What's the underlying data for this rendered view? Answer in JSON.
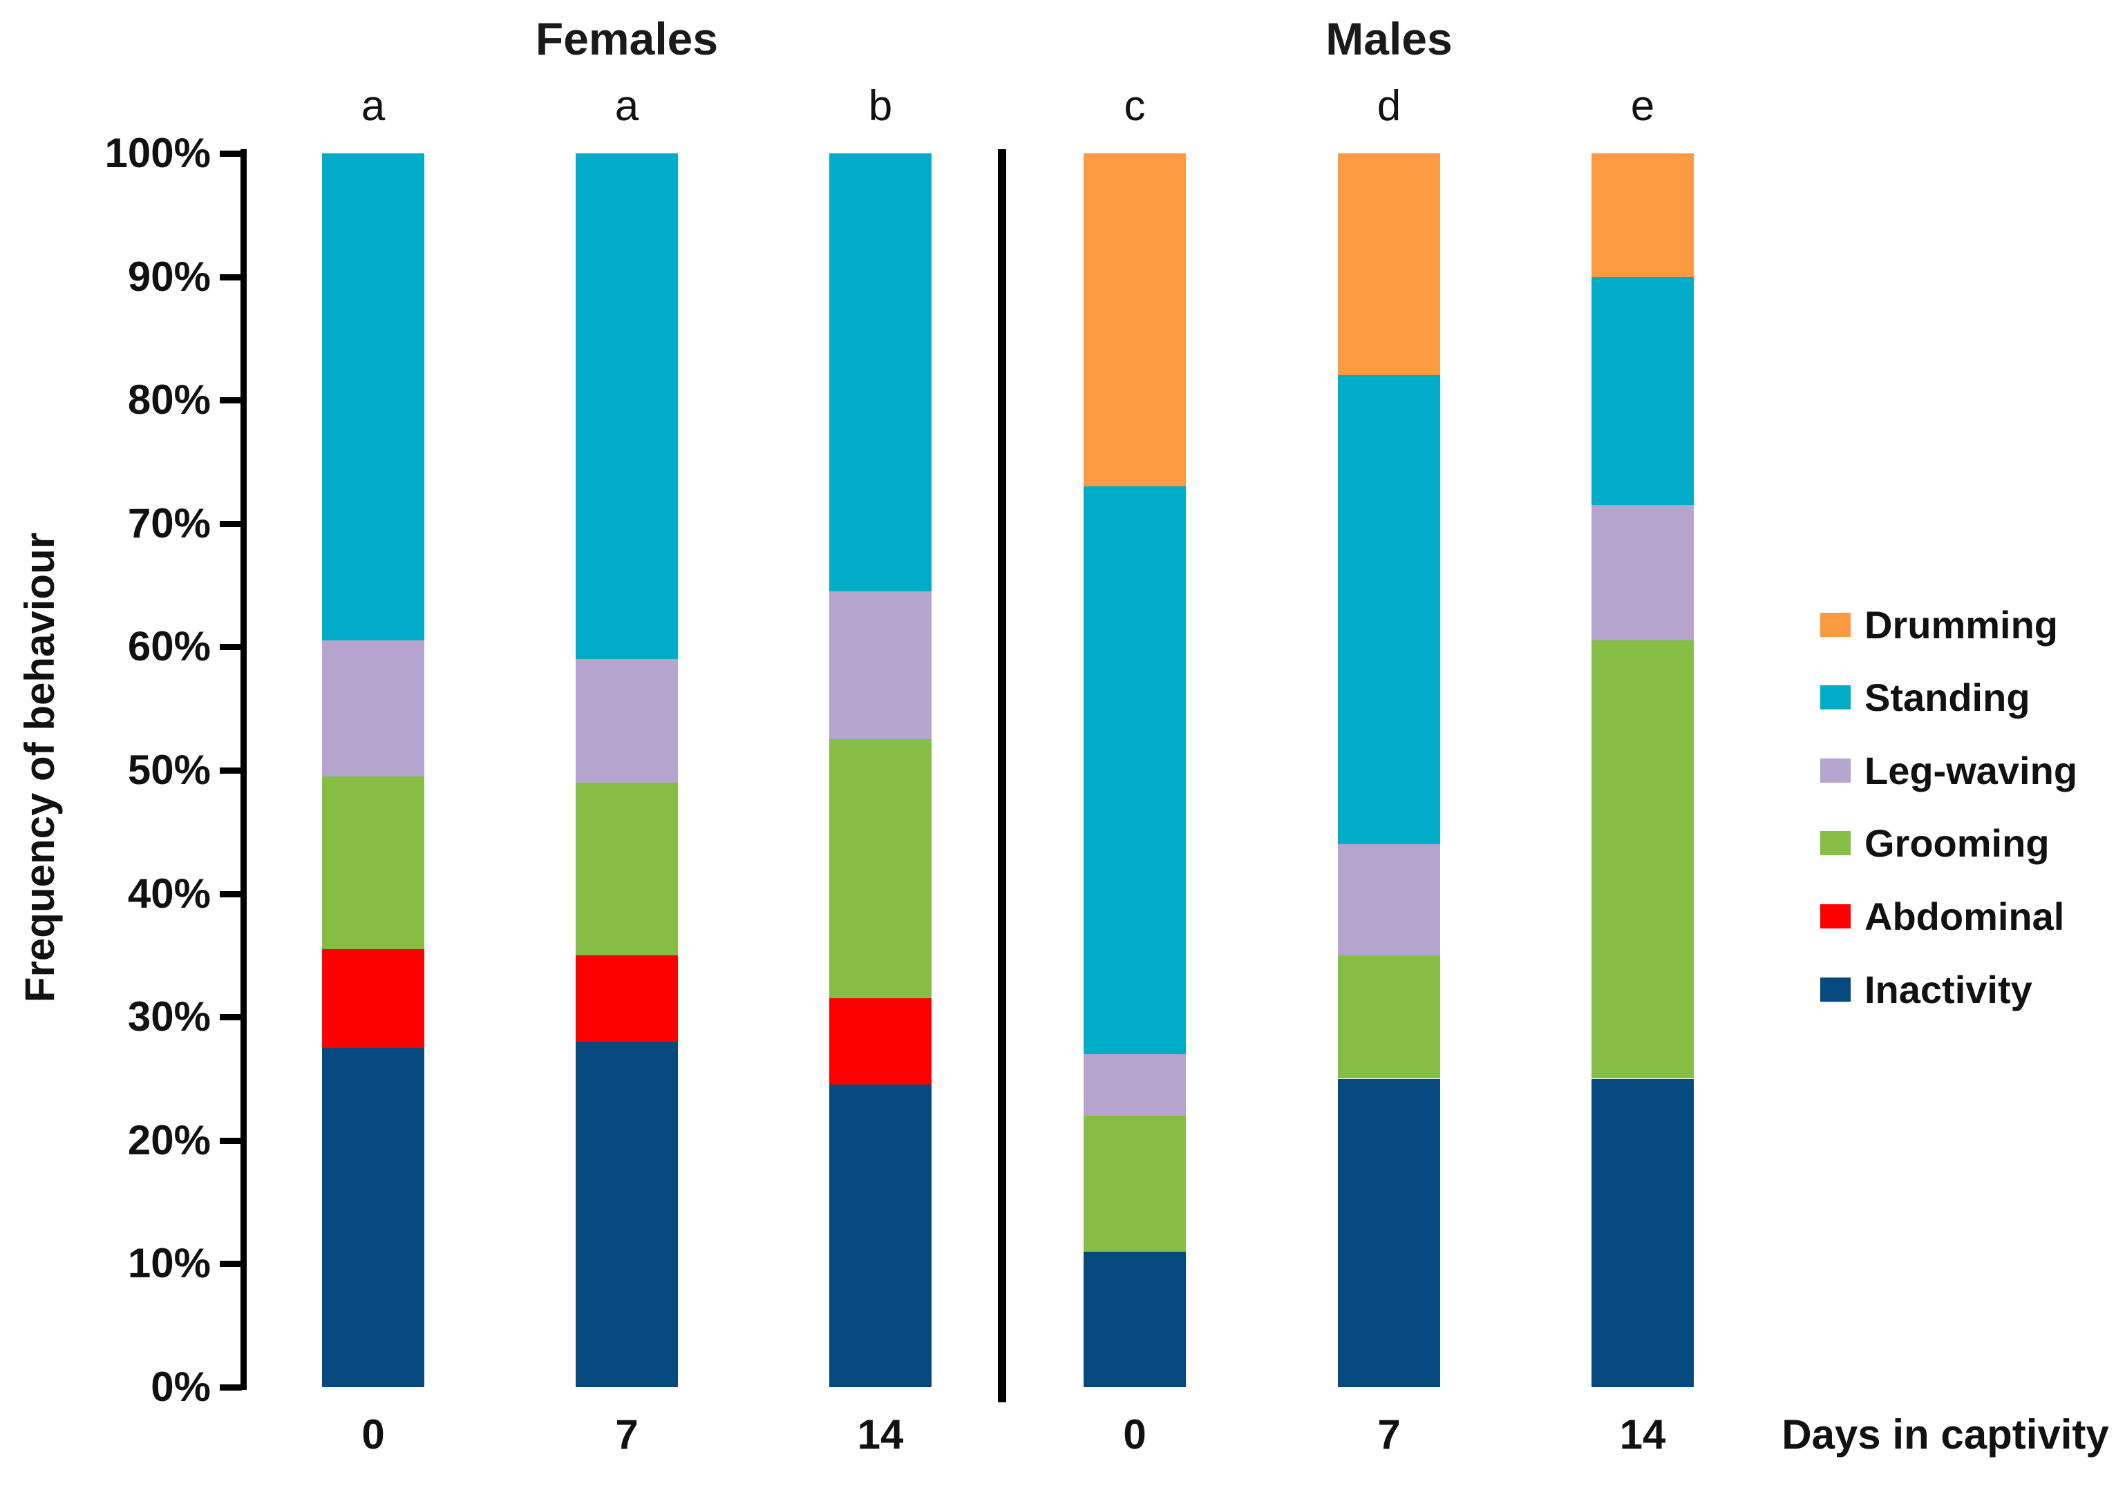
{
  "chart_data": {
    "type": "bar",
    "stacked": true,
    "units": "percent",
    "title": "",
    "ylabel": "Frequency of behaviour",
    "xlabel": "Days in captivity",
    "ylim": [
      0,
      100
    ],
    "grid": false,
    "legend_position": "right",
    "groups": [
      {
        "label": "Females",
        "categories": [
          "0",
          "7",
          "14"
        ],
        "significance_letters": [
          "a",
          "a",
          "b"
        ]
      },
      {
        "label": "Males",
        "categories": [
          "0",
          "7",
          "14"
        ],
        "significance_letters": [
          "c",
          "d",
          "e"
        ]
      }
    ],
    "categories": [
      "0",
      "7",
      "14",
      "0",
      "7",
      "14"
    ],
    "bar_letters": [
      "a",
      "a",
      "b",
      "c",
      "d",
      "e"
    ],
    "series": [
      {
        "name": "Inactivity",
        "color": "#05497E",
        "values": [
          27.5,
          28,
          24.5,
          11,
          25,
          25
        ]
      },
      {
        "name": "Abdominal",
        "color": "#FD0000",
        "values": [
          8,
          7,
          7,
          0,
          0,
          0
        ]
      },
      {
        "name": "Grooming",
        "color": "#85BD45",
        "values": [
          14,
          14,
          21,
          11,
          10,
          35.5
        ]
      },
      {
        "name": "Leg-waving",
        "color": "#B5A4CD",
        "values": [
          11,
          10,
          12,
          5,
          9,
          11
        ]
      },
      {
        "name": "Standing",
        "color": "#00ACC8",
        "values": [
          39.5,
          41,
          35.5,
          46,
          38,
          18.5
        ]
      },
      {
        "name": "Drumming",
        "color": "#FB9A40",
        "values": [
          0,
          0,
          0,
          27,
          18,
          10
        ]
      }
    ],
    "legend_order_top_to_bottom": [
      "Drumming",
      "Standing",
      "Leg-waving",
      "Grooming",
      "Abdominal",
      "Inactivity"
    ],
    "y_ticks": [
      {
        "label": "100%",
        "value": 100
      },
      {
        "label": "90%",
        "value": 90
      },
      {
        "label": "80%",
        "value": 80
      },
      {
        "label": "70%",
        "value": 70
      },
      {
        "label": "60%",
        "value": 60
      },
      {
        "label": "50%",
        "value": 50
      },
      {
        "label": "40%",
        "value": 40
      },
      {
        "label": "30%",
        "value": 30
      },
      {
        "label": "20%",
        "value": 20
      },
      {
        "label": "10%",
        "value": 10
      },
      {
        "label": "0%",
        "value": 0
      }
    ],
    "axis_color": "#000000",
    "background_color": "#ffffff"
  }
}
